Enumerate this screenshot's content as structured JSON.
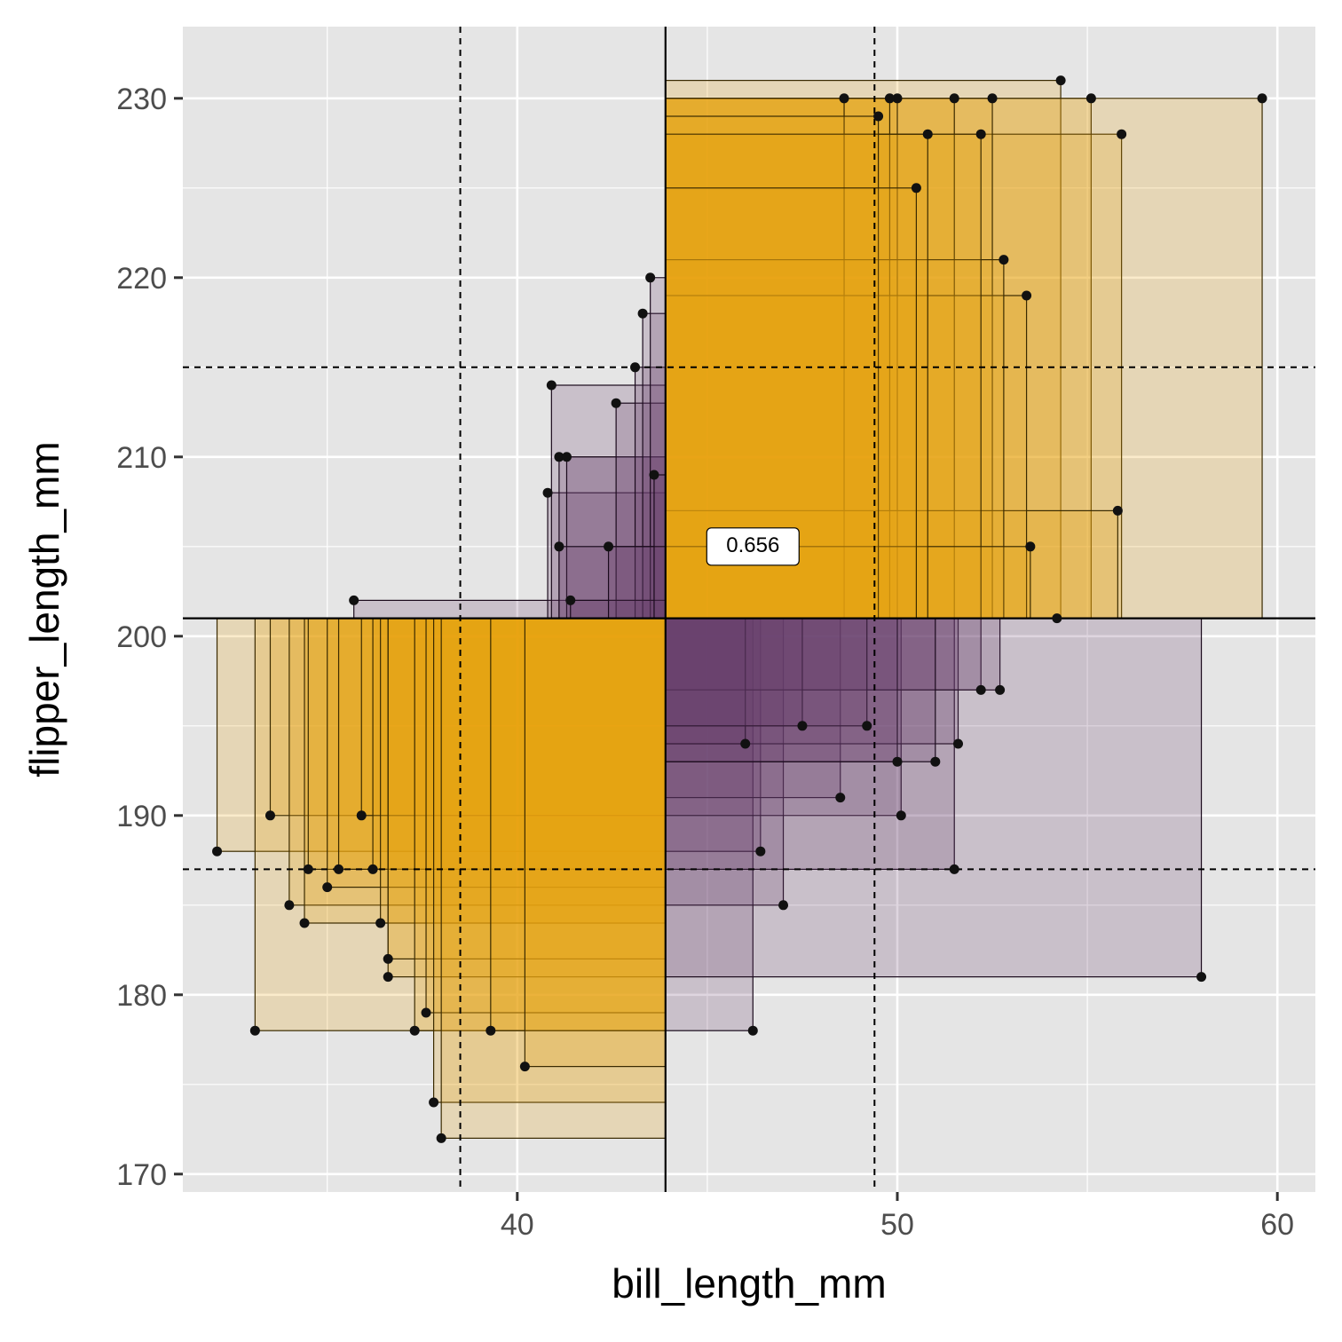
{
  "chart_data": {
    "type": "scatter",
    "title": "",
    "xlabel": "bill_length_mm",
    "ylabel": "flipper_length_mm",
    "xlim": [
      31.2,
      61.0
    ],
    "ylim": [
      169.0,
      234.0
    ],
    "x_ticks": [
      40,
      50,
      60
    ],
    "y_ticks": [
      170,
      180,
      190,
      200,
      210,
      220,
      230
    ],
    "grid": true,
    "legend": "none",
    "center_lines": {
      "x": 43.9,
      "y": 201
    },
    "reference_lines": {
      "x": [
        38.5,
        49.4
      ],
      "y": [
        187,
        215
      ]
    },
    "correlation_label": "0.656",
    "correlation_label_position": {
      "x": 46.2,
      "y": 205
    },
    "colors": {
      "positive": "#e8a614",
      "negative": "#6b3f6f",
      "panel": "#e5e5e5",
      "grid": "#ffffff"
    },
    "points": [
      [
        32.1,
        188
      ],
      [
        33.1,
        178
      ],
      [
        33.5,
        190
      ],
      [
        34.0,
        185
      ],
      [
        34.4,
        184
      ],
      [
        34.5,
        187
      ],
      [
        35.0,
        186
      ],
      [
        35.3,
        187
      ],
      [
        35.7,
        202
      ],
      [
        35.9,
        190
      ],
      [
        36.2,
        187
      ],
      [
        36.4,
        184
      ],
      [
        36.6,
        181
      ],
      [
        36.6,
        182
      ],
      [
        37.3,
        178
      ],
      [
        37.6,
        179
      ],
      [
        37.8,
        174
      ],
      [
        38.0,
        172
      ],
      [
        39.3,
        178
      ],
      [
        40.2,
        176
      ],
      [
        40.8,
        208
      ],
      [
        40.9,
        214
      ],
      [
        41.1,
        210
      ],
      [
        41.3,
        210
      ],
      [
        42.6,
        213
      ],
      [
        43.1,
        215
      ],
      [
        43.3,
        218
      ],
      [
        43.5,
        220
      ],
      [
        41.1,
        205
      ],
      [
        41.4,
        202
      ],
      [
        42.4,
        205
      ],
      [
        43.6,
        209
      ],
      [
        46.2,
        178
      ],
      [
        46.4,
        188
      ],
      [
        47.0,
        185
      ],
      [
        48.5,
        191
      ],
      [
        50.1,
        190
      ],
      [
        51.5,
        187
      ],
      [
        51.6,
        194
      ],
      [
        52.2,
        197
      ],
      [
        52.7,
        197
      ],
      [
        58.0,
        181
      ],
      [
        46.0,
        194
      ],
      [
        47.5,
        195
      ],
      [
        49.2,
        195
      ],
      [
        50.0,
        193
      ],
      [
        51.0,
        193
      ],
      [
        54.3,
        231
      ],
      [
        55.1,
        230
      ],
      [
        55.9,
        228
      ],
      [
        59.6,
        230
      ],
      [
        52.5,
        230
      ],
      [
        51.5,
        230
      ],
      [
        50.0,
        230
      ],
      [
        49.8,
        230
      ],
      [
        48.6,
        230
      ],
      [
        55.8,
        207
      ],
      [
        54.2,
        201
      ],
      [
        53.4,
        219
      ],
      [
        52.8,
        221
      ],
      [
        52.2,
        228
      ],
      [
        53.5,
        205
      ],
      [
        50.8,
        228
      ],
      [
        49.5,
        229
      ],
      [
        50.5,
        225
      ]
    ]
  }
}
